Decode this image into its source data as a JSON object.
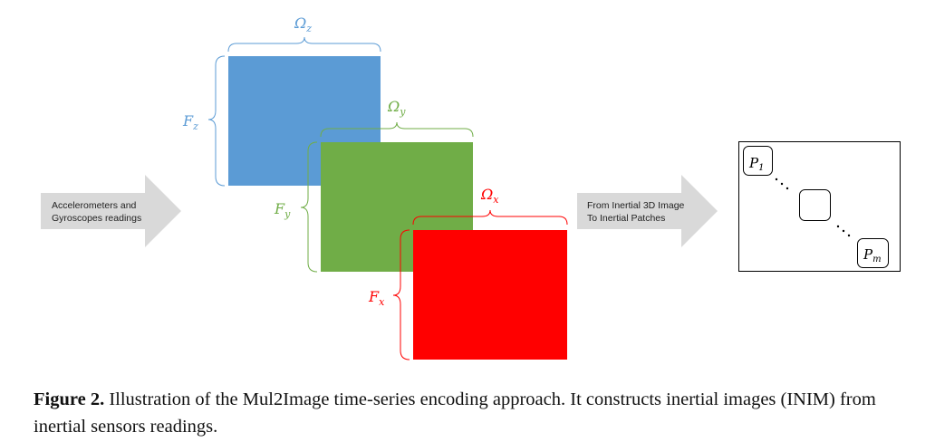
{
  "input_arrow": {
    "line1": "Accelerometers and",
    "line2": "Gyroscopes readings"
  },
  "output_arrow": {
    "line1": "From Inertial 3D Image",
    "line2": "To Inertial Patches"
  },
  "layers": {
    "z": {
      "omega_base": "Ω",
      "omega_sub": "z",
      "f_base": "F",
      "f_sub": "z",
      "color": "#5b9bd5"
    },
    "y": {
      "omega_base": "Ω",
      "omega_sub": "y",
      "f_base": "F",
      "f_sub": "y",
      "color": "#70ad47"
    },
    "x": {
      "omega_base": "Ω",
      "omega_sub": "x",
      "f_base": "F",
      "f_sub": "x",
      "color": "#ff0000"
    }
  },
  "patches": {
    "first": {
      "base": "P",
      "sub": "1"
    },
    "last": {
      "base": "P",
      "sub": "m"
    }
  },
  "caption": {
    "label": "Figure 2.",
    "text": " Illustration of the Mul2Image time-series encoding approach. It constructs inertial images (INIM) from inertial sensors readings."
  }
}
